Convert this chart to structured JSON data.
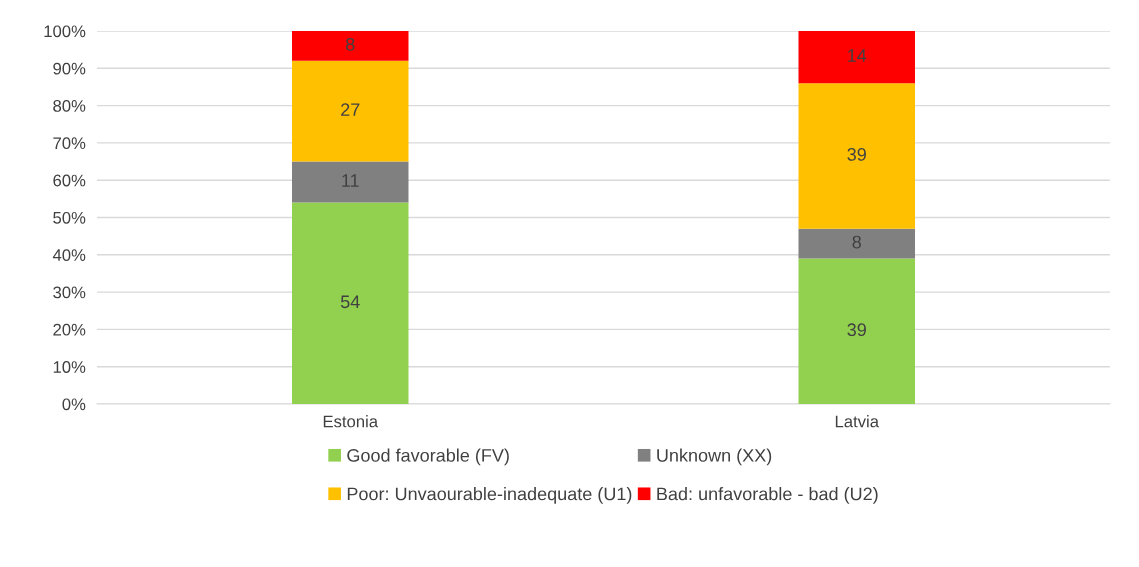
{
  "chart_data": {
    "type": "bar",
    "stacked": true,
    "categories": [
      "Estonia",
      "Latvia"
    ],
    "series": [
      {
        "name": "Good favorable (FV)",
        "color": "#92d050",
        "values": [
          54,
          39
        ]
      },
      {
        "name": "Unknown (XX)",
        "color": "#808080",
        "values": [
          11,
          8
        ]
      },
      {
        "name": "Poor: Unvaourable-inadequate (U1)",
        "color": "#ffc000",
        "values": [
          27,
          39
        ]
      },
      {
        "name": "Bad: unfavorable - bad (U2)",
        "color": "#ff0000",
        "values": [
          8,
          14
        ]
      }
    ],
    "ylim": [
      0,
      100
    ],
    "yticks": [
      {
        "value": 0,
        "label": "0%"
      },
      {
        "value": 10,
        "label": "10%"
      },
      {
        "value": 20,
        "label": "20%"
      },
      {
        "value": 30,
        "label": "30%"
      },
      {
        "value": 40,
        "label": "40%"
      },
      {
        "value": 50,
        "label": "50%"
      },
      {
        "value": 60,
        "label": "60%"
      },
      {
        "value": 70,
        "label": "70%"
      },
      {
        "value": 80,
        "label": "80%"
      },
      {
        "value": 90,
        "label": "90%"
      },
      {
        "value": 100,
        "label": "100%"
      }
    ],
    "grid": "y",
    "legend": "bottom",
    "data_labels": true
  }
}
